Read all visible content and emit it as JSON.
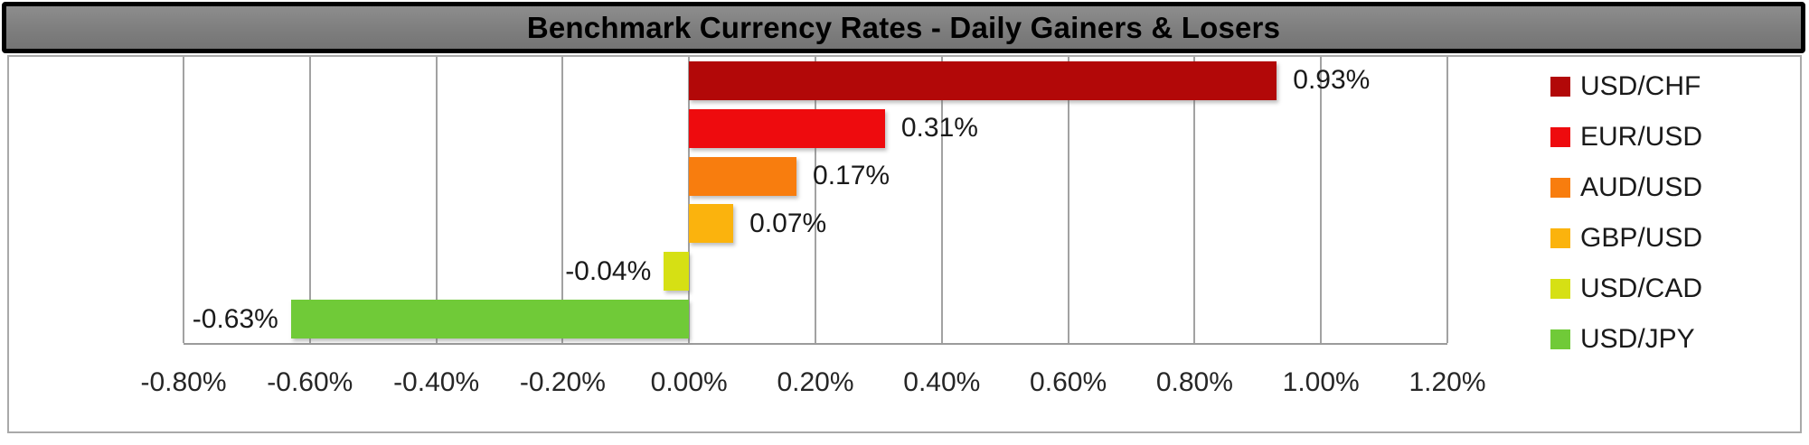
{
  "window": {
    "title": "Benchmark Currency Rates - Daily Gainers & Losers"
  },
  "chart_data": {
    "type": "bar",
    "orientation": "horizontal",
    "title": "Benchmark Currency Rates - Daily Gainers & Losers",
    "series": [
      {
        "name": "USD/CHF",
        "value": 0.93,
        "data_label": "0.93%",
        "color": "#B20808"
      },
      {
        "name": "EUR/USD",
        "value": 0.31,
        "data_label": "0.31%",
        "color": "#EE0B0E"
      },
      {
        "name": "AUD/USD",
        "value": 0.17,
        "data_label": "0.17%",
        "color": "#F87D0E"
      },
      {
        "name": "GBP/USD",
        "value": 0.07,
        "data_label": "0.07%",
        "color": "#FBB30D"
      },
      {
        "name": "USD/CAD",
        "value": -0.04,
        "data_label": "-0.04%",
        "color": "#D6E014"
      },
      {
        "name": "USD/JPY",
        "value": -0.63,
        "data_label": "-0.63%",
        "color": "#70CA38"
      }
    ],
    "xlim": [
      -0.8,
      1.2
    ],
    "x_ticks": [
      {
        "value": -0.8,
        "label": "-0.80%"
      },
      {
        "value": -0.6,
        "label": "-0.60%"
      },
      {
        "value": -0.4,
        "label": "-0.40%"
      },
      {
        "value": -0.2,
        "label": "-0.20%"
      },
      {
        "value": 0.0,
        "label": "0.00%"
      },
      {
        "value": 0.2,
        "label": "0.20%"
      },
      {
        "value": 0.4,
        "label": "0.40%"
      },
      {
        "value": 0.6,
        "label": "0.60%"
      },
      {
        "value": 0.8,
        "label": "0.80%"
      },
      {
        "value": 1.0,
        "label": "1.00%"
      },
      {
        "value": 1.2,
        "label": "1.20%"
      }
    ],
    "grid": true,
    "legend_position": "right",
    "legend": [
      "USD/CHF",
      "EUR/USD",
      "AUD/USD",
      "GBP/USD",
      "USD/CAD",
      "USD/JPY"
    ]
  },
  "colors": {
    "title_bar_bg": "#7F7F7F",
    "title_bar_border": "#000000",
    "chart_bg": "#FFFFFF",
    "chart_border": "#A9A9A9",
    "gridline": "#A2A2A2",
    "label_text": "#1A1A1A"
  }
}
